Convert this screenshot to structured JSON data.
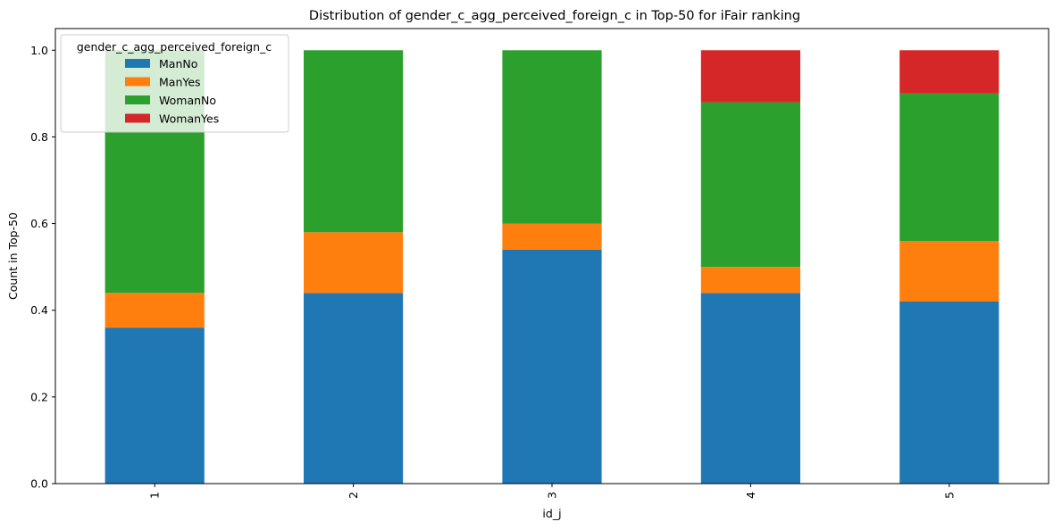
{
  "chart_data": {
    "type": "bar",
    "stacked": true,
    "title": "Distribution of gender_c_agg_perceived_foreign_c in Top-50 for iFair ranking",
    "xlabel": "id_j",
    "ylabel": "Count in Top-50",
    "categories": [
      "1",
      "2",
      "3",
      "4",
      "5"
    ],
    "ylim": [
      0,
      1.05
    ],
    "yticks": [
      0.0,
      0.2,
      0.4,
      0.6,
      0.8,
      1.0
    ],
    "ytick_labels": [
      "0.0",
      "0.2",
      "0.4",
      "0.6",
      "0.8",
      "1.0"
    ],
    "grid": false,
    "legend": {
      "title": "gender_c_agg_perceived_foreign_c",
      "placement": "upper-left"
    },
    "series": [
      {
        "name": "ManNo",
        "color": "#1f77b4",
        "values": [
          0.36,
          0.44,
          0.54,
          0.44,
          0.42
        ]
      },
      {
        "name": "ManYes",
        "color": "#ff7f0e",
        "values": [
          0.08,
          0.14,
          0.06,
          0.06,
          0.14
        ]
      },
      {
        "name": "WomanNo",
        "color": "#2ca02c",
        "values": [
          0.56,
          0.42,
          0.4,
          0.38,
          0.34
        ]
      },
      {
        "name": "WomanYes",
        "color": "#d62728",
        "values": [
          0.0,
          0.0,
          0.0,
          0.12,
          0.1
        ]
      }
    ]
  }
}
